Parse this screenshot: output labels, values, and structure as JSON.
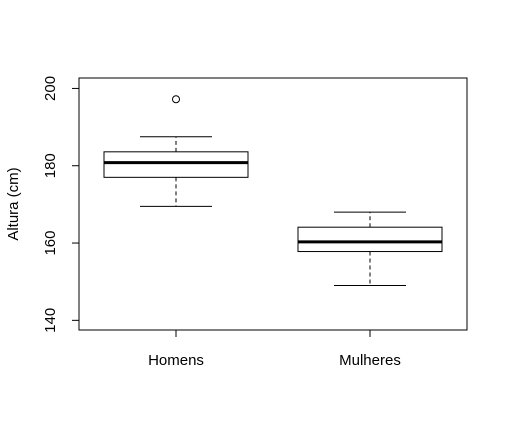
{
  "chart_data": {
    "type": "boxplot",
    "title": "",
    "xlabel": "",
    "ylabel": "Altura (cm)",
    "ylim": [
      137.5,
      202.7
    ],
    "yticks": [
      140,
      160,
      180,
      200
    ],
    "ytick_labels": [
      "140",
      "160",
      "180",
      "200"
    ],
    "grid": false,
    "categories": [
      "Homens",
      "Mulheres"
    ],
    "boxes": [
      {
        "category": "Homens",
        "whisker_low": 169.5,
        "q1": 177.0,
        "median": 180.8,
        "q3": 183.6,
        "whisker_high": 187.5,
        "outliers": [
          197.2
        ]
      },
      {
        "category": "Mulheres",
        "whisker_low": 149.0,
        "q1": 157.8,
        "median": 160.3,
        "q3": 164.1,
        "whisker_high": 168.0,
        "outliers": []
      }
    ]
  }
}
